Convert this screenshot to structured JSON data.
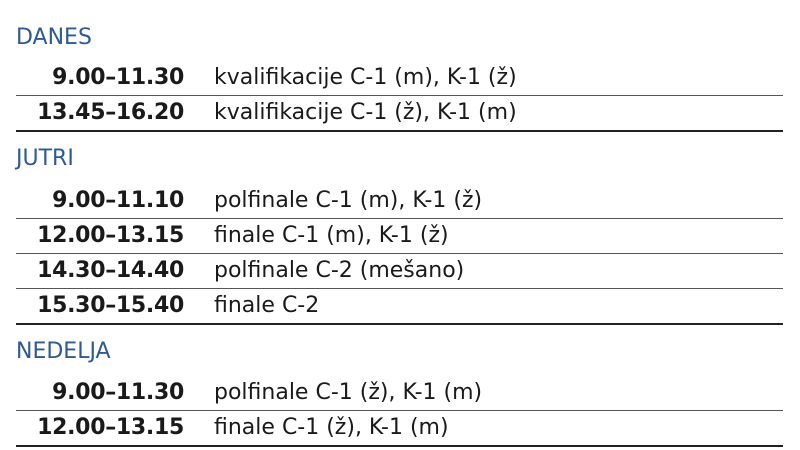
{
  "days": [
    {
      "name": "DANES",
      "rows": [
        {
          "time": "9.00–11.30",
          "stage": "kvalifikacije",
          "events": "C-1 (m), K-1 (ž)"
        },
        {
          "time": "13.45–16.20",
          "stage": "kvalifikacije",
          "events": "C-1 (ž), K-1 (m)"
        }
      ]
    },
    {
      "name": "JUTRI",
      "rows": [
        {
          "time": "9.00–11.10",
          "stage": "polfinale",
          "events": "C-1 (m), K-1 (ž)"
        },
        {
          "time": "12.00–13.15",
          "stage": "finale",
          "events": "C-1 (m), K-1 (ž)"
        },
        {
          "time": "14.30–14.40",
          "stage": "polfinale",
          "events": "C-2 (mešano)"
        },
        {
          "time": "15.30–15.40",
          "stage": "finale",
          "events": "C-2"
        }
      ]
    },
    {
      "name": "NEDELJA",
      "rows": [
        {
          "time": "9.00–11.30",
          "stage": "polfinale",
          "events": "C-1 (ž), K-1 (m)"
        },
        {
          "time": "12.00–13.15",
          "stage": "finale",
          "events": "C-1 (ž), K-1 (m)"
        }
      ]
    }
  ],
  "colors": {
    "heading": "#2f5a92",
    "text": "#1a1a1a",
    "rule": "#555555"
  }
}
